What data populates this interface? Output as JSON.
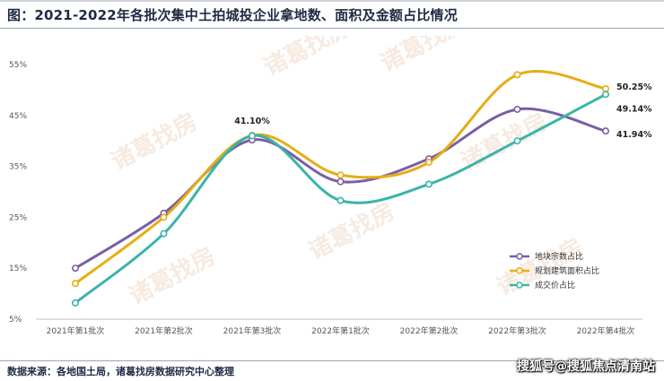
{
  "header": {
    "title": "图：2021-2022年各批次集中土拍城投企业拿地数、面积及金额占比情况"
  },
  "footer": {
    "source": "数据来源：各地国土局，诸葛找房数据研究中心整理",
    "credit": "搜狐号@搜狐焦点清南站"
  },
  "watermark": "诸葛找房",
  "chart_data": {
    "type": "line",
    "categories": [
      "2021年第1批次",
      "2021年第2批次",
      "2021年第3批次",
      "2022年第1批次",
      "2022年第2批次",
      "2022年第3批次",
      "2022年第4批次"
    ],
    "yticks": [
      "5%",
      "15%",
      "25%",
      "35%",
      "45%",
      "55%"
    ],
    "ylim": [
      5,
      55
    ],
    "grid": false,
    "legend_position": "bottom-right",
    "series": [
      {
        "name": "地块宗数占比",
        "color": "#7b5ea6",
        "values": [
          15.0,
          25.8,
          40.2,
          32.0,
          36.5,
          46.2,
          41.94
        ]
      },
      {
        "name": "规划建筑面积占比",
        "color": "#e5ae14",
        "values": [
          12.0,
          25.0,
          41.1,
          33.3,
          35.8,
          53.0,
          50.25
        ]
      },
      {
        "name": "成交价占比",
        "color": "#3bb4a8",
        "values": [
          8.2,
          21.8,
          41.0,
          28.3,
          31.5,
          40.0,
          49.14
        ]
      }
    ],
    "data_labels": [
      {
        "series": 1,
        "point": 2,
        "text": "41.10%"
      },
      {
        "series": 1,
        "point": 6,
        "text": "50.25%"
      },
      {
        "series": 2,
        "point": 6,
        "text": "49.14%"
      },
      {
        "series": 0,
        "point": 6,
        "text": "41.94%"
      }
    ]
  }
}
